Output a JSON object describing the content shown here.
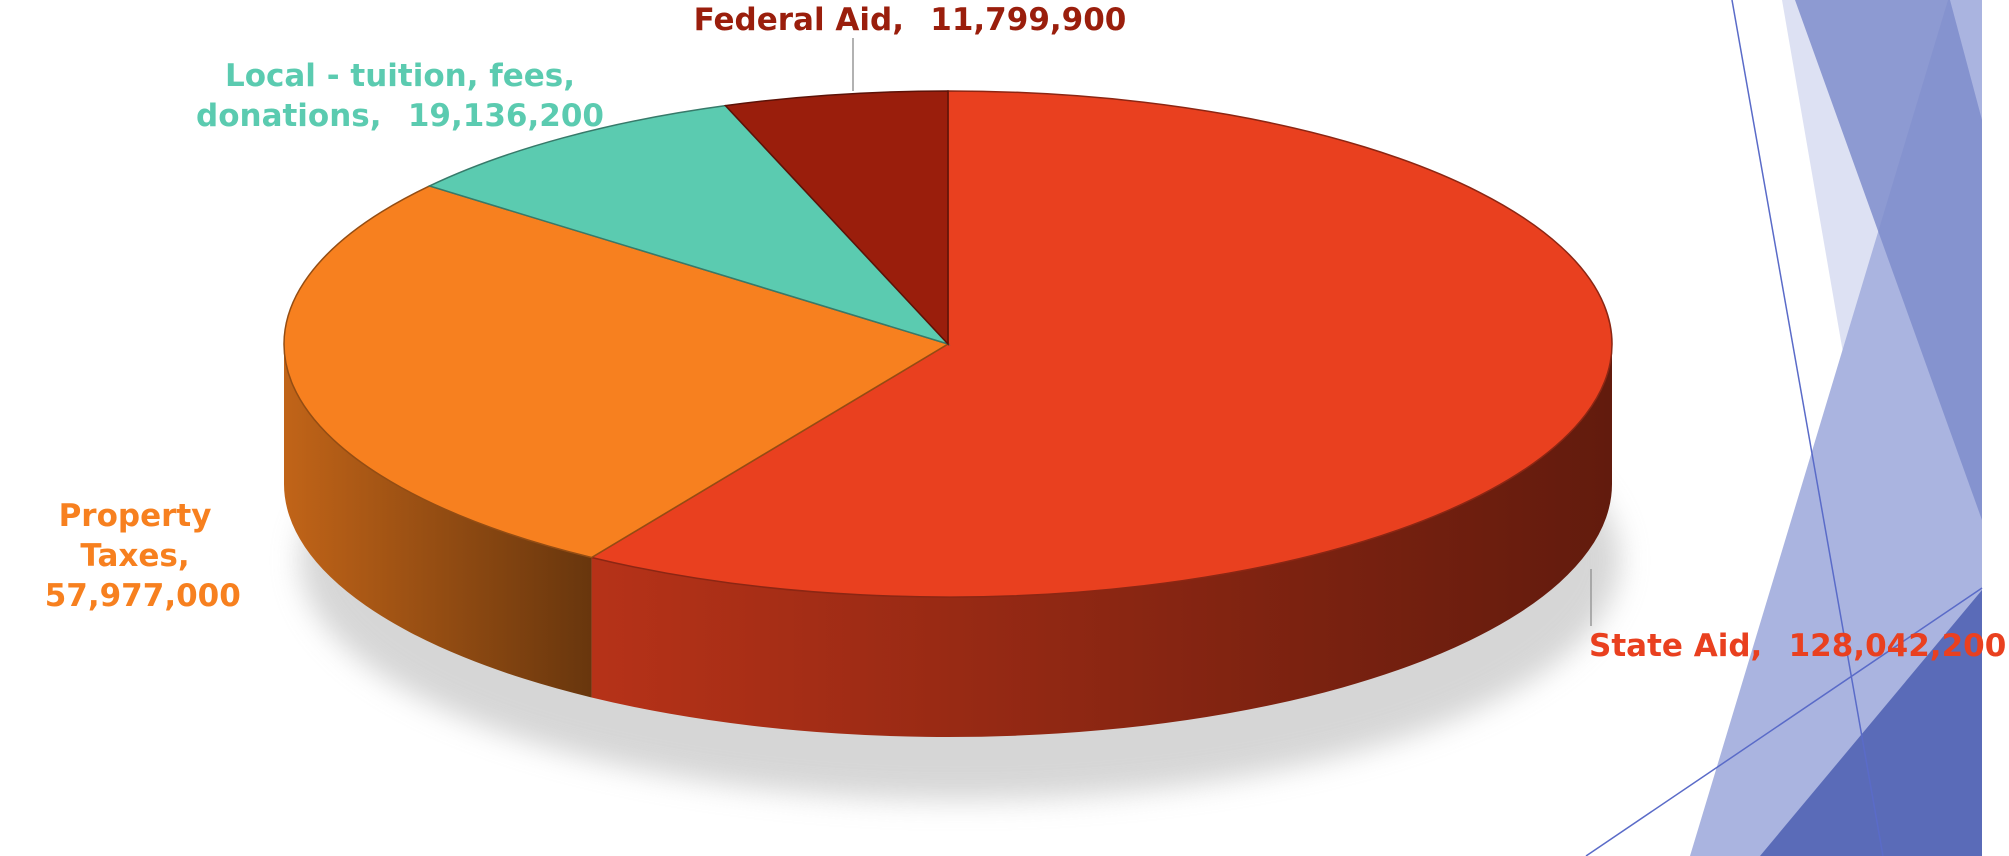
{
  "chart_data": {
    "type": "pie3d",
    "categories": [
      "State Aid",
      "Property Taxes",
      "Local - tuition, fees, donations",
      "Federal Aid"
    ],
    "values": [
      128042200,
      57977000,
      19136200,
      11799900
    ],
    "value_labels": [
      "128,042,200",
      "57,977,000",
      "19,136,200",
      "11,799,900"
    ],
    "label_separator": ",",
    "colors": [
      "#E9401F",
      "#F7801F",
      "#5BCBB0",
      "#9A1E0C"
    ]
  }
}
